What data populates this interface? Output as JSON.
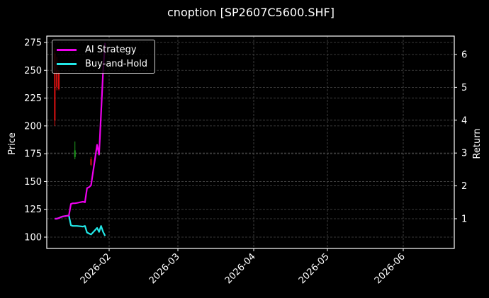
{
  "title": "cnoption [SP2607C5600.SHF]",
  "colors": {
    "background": "#000000",
    "axes": "#ffffff",
    "grid": "#555555",
    "ai_strategy": "#ee00ee",
    "buy_and_hold": "#22e8e8",
    "candle_up": "#1fa01f",
    "candle_down": "#dd1111"
  },
  "legend": {
    "items": [
      {
        "label": "AI Strategy",
        "color": "#ee00ee"
      },
      {
        "label": "Buy-and-Hold",
        "color": "#22e8e8"
      }
    ]
  },
  "chart_data": {
    "type": "line",
    "title": "cnoption [SP2607C5600.SHF]",
    "xlabel": "",
    "ylabel": "Price",
    "y2label": "Return",
    "x_ticks": [
      "2026-02",
      "2026-03",
      "2026-04",
      "2026-05",
      "2026-06"
    ],
    "y_ticks": [
      100,
      125,
      150,
      175,
      200,
      225,
      250,
      275
    ],
    "y2_ticks": [
      1,
      2,
      3,
      4,
      5,
      6
    ],
    "ylim": [
      90,
      280
    ],
    "y2lim": [
      0.15,
      6.55
    ],
    "grid": true,
    "legend_position": "upper left",
    "x_dates": [
      "2026-01-05",
      "2026-01-06",
      "2026-01-07",
      "2026-01-08",
      "2026-01-09",
      "2026-01-12",
      "2026-01-13",
      "2026-01-14",
      "2026-01-15",
      "2026-01-16",
      "2026-01-19",
      "2026-01-20",
      "2026-01-21",
      "2026-01-22",
      "2026-01-23",
      "2026-01-26",
      "2026-01-27",
      "2026-01-28",
      "2026-01-29",
      "2026-01-30"
    ],
    "series": [
      {
        "name": "AI Strategy",
        "axis": "right",
        "values": [
          1.0,
          1.0,
          1.02,
          1.05,
          1.07,
          1.1,
          1.45,
          1.47,
          1.47,
          1.48,
          1.52,
          1.5,
          1.93,
          1.96,
          2.02,
          3.25,
          2.95,
          4.2,
          5.5,
          6.35
        ]
      },
      {
        "name": "Buy-and-Hold",
        "axis": "right",
        "values": [
          1.0,
          1.0,
          1.02,
          1.05,
          1.07,
          1.1,
          0.8,
          0.78,
          0.78,
          0.78,
          0.76,
          0.78,
          0.58,
          0.55,
          0.52,
          0.72,
          0.6,
          0.78,
          0.6,
          0.48
        ]
      }
    ],
    "candles": [
      {
        "date": "2026-01-05",
        "open": 265,
        "high": 270,
        "low": 200,
        "close": 205,
        "dir": "down"
      },
      {
        "date": "2026-01-06",
        "open": 250,
        "high": 262,
        "low": 232,
        "close": 235,
        "dir": "down"
      },
      {
        "date": "2026-01-07",
        "open": 248,
        "high": 250,
        "low": 232,
        "close": 233,
        "dir": "down"
      },
      {
        "date": "2026-01-15",
        "open": 172,
        "high": 186,
        "low": 170,
        "close": 178,
        "dir": "up"
      },
      {
        "date": "2026-01-23",
        "open": 170,
        "high": 172,
        "low": 164,
        "close": 165,
        "dir": "down"
      }
    ]
  }
}
